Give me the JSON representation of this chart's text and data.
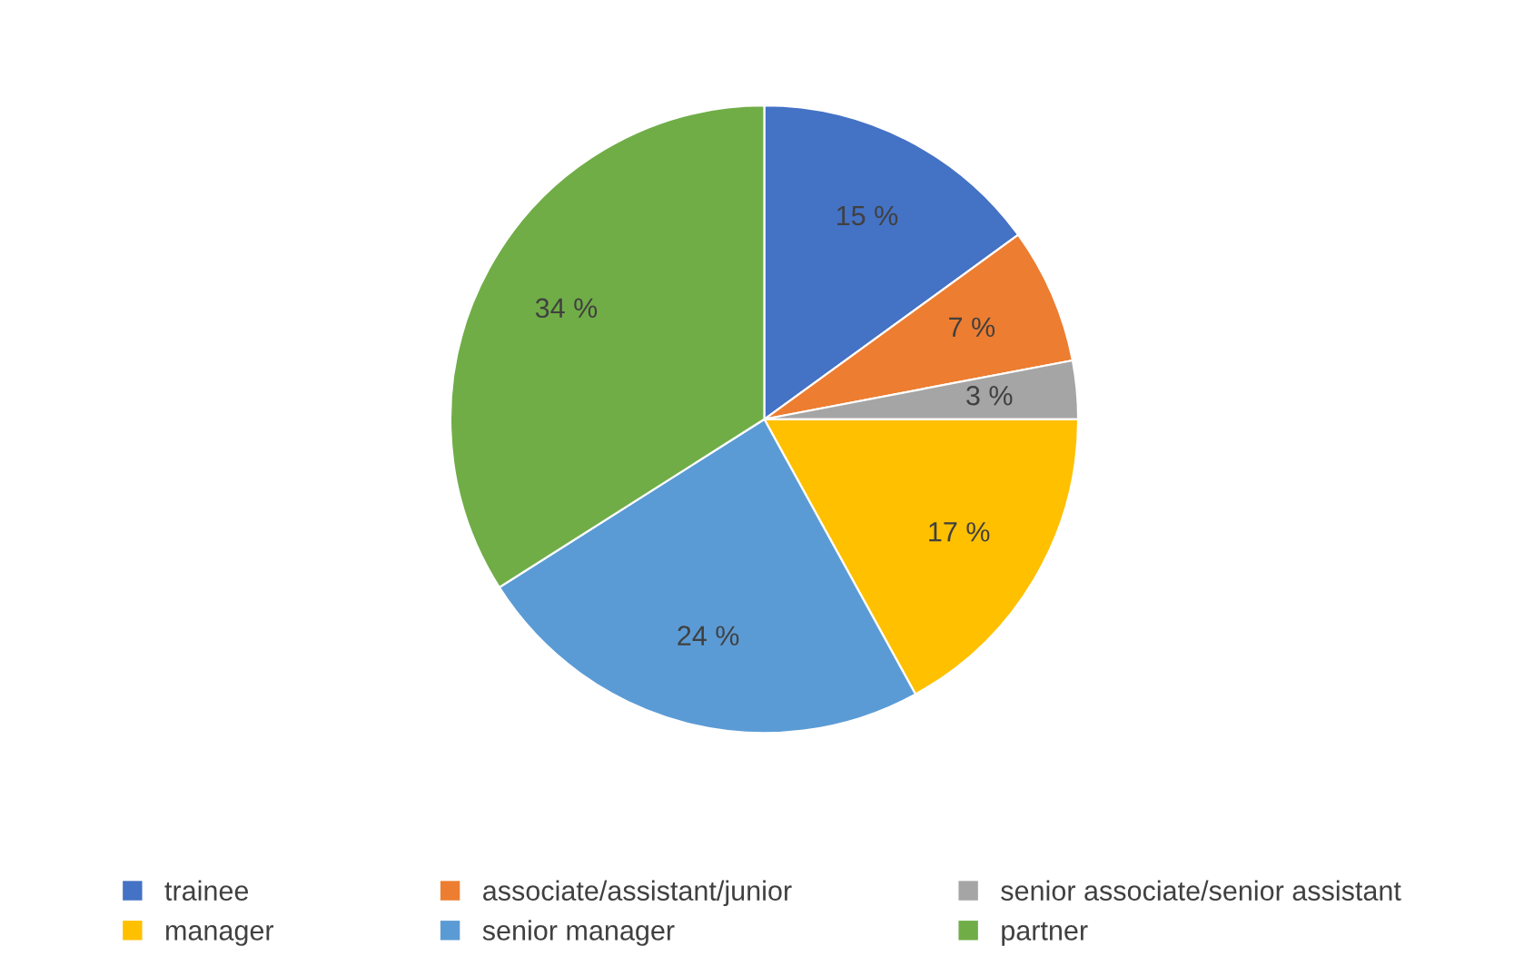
{
  "chart_data": {
    "type": "pie",
    "categories": [
      "trainee",
      "associate/assistant/junior",
      "senior associate/senior assistant",
      "manager",
      "senior manager",
      "partner"
    ],
    "values": [
      15,
      7,
      3,
      17,
      24,
      34
    ],
    "colors": [
      "#4472c4",
      "#ed7d31",
      "#a5a5a5",
      "#ffc000",
      "#5b9bd5",
      "#70ad47"
    ],
    "value_labels": [
      "15 %",
      "7 %",
      "3 %",
      "17 %",
      "24 %",
      "34 %"
    ],
    "legend": "bottom"
  }
}
